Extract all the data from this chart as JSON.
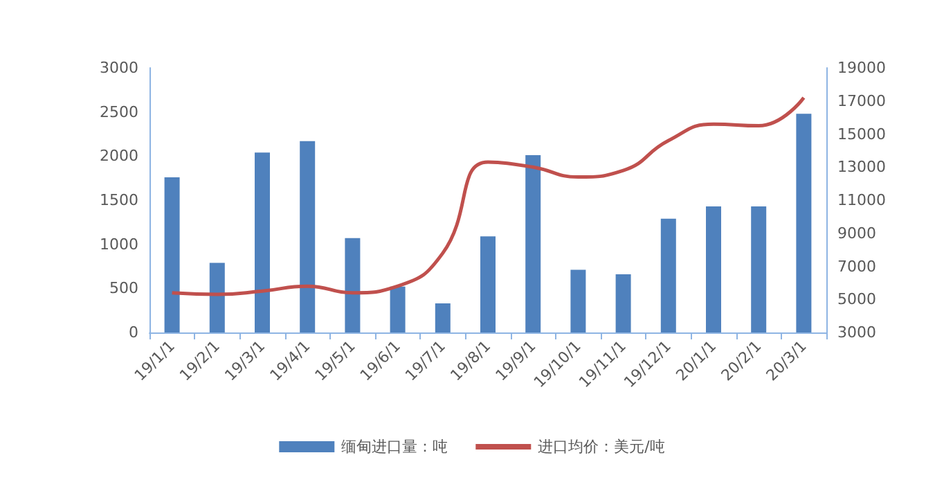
{
  "chart_data": {
    "type": "bar",
    "categories": [
      "19/1/1",
      "19/2/1",
      "19/3/1",
      "19/4/1",
      "19/5/1",
      "19/6/1",
      "19/7/1",
      "19/8/1",
      "19/9/1",
      "19/10/1",
      "19/11/1",
      "19/12/1",
      "20/1/1",
      "20/2/1",
      "20/3/1"
    ],
    "series": [
      {
        "name": "缅甸进口量：吨",
        "color": "#4f81bd",
        "values": [
          1760,
          790,
          2040,
          2170,
          1070,
          520,
          330,
          1090,
          2010,
          710,
          660,
          1290,
          1430,
          1430,
          2480
        ]
      },
      {
        "name": "进口均价：美元/吨",
        "type": "line",
        "axis": "y2",
        "color": "#c0504d",
        "values": [
          5400,
          5300,
          5500,
          5800,
          5400,
          5800,
          7800,
          13300,
          13000,
          12400,
          12800,
          14600,
          15600,
          15500,
          17200
        ]
      }
    ],
    "ylim": [
      0,
      3000
    ],
    "yticks": [
      0,
      500,
      1000,
      1500,
      2000,
      2500,
      3000
    ],
    "y2lim": [
      3000,
      19000
    ],
    "y2ticks": [
      3000,
      5000,
      7000,
      9000,
      11000,
      13000,
      15000,
      17000,
      19000
    ],
    "grid": false,
    "legend": "bottom",
    "marker": "none",
    "line_style": "solid"
  }
}
